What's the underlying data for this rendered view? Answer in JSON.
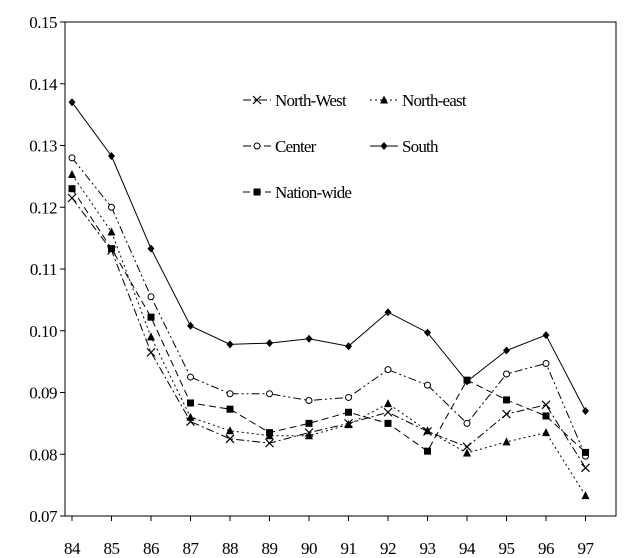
{
  "chart_data": {
    "type": "line",
    "title": "",
    "xlabel": "",
    "ylabel": "",
    "x": [
      "84",
      "85",
      "86",
      "87",
      "88",
      "89",
      "90",
      "91",
      "92",
      "93",
      "94",
      "95",
      "96",
      "97"
    ],
    "ylim": [
      0.07,
      0.15
    ],
    "yticks": [
      "0.07",
      "0.08",
      "0.09",
      "0.10",
      "0.11",
      "0.12",
      "0.13",
      "0.14",
      "0.15"
    ],
    "grid": false,
    "legend_position": "top-center",
    "series": [
      {
        "name": "North-West",
        "marker": "x",
        "dash": "dashdot",
        "values": [
          0.1215,
          0.113,
          0.0965,
          0.0853,
          0.0825,
          0.0818,
          0.0835,
          0.085,
          0.0868,
          0.0837,
          0.0812,
          0.0865,
          0.088,
          0.0778
        ]
      },
      {
        "name": "North-east",
        "marker": "triangle",
        "dash": "dot",
        "values": [
          0.1253,
          0.116,
          0.099,
          0.086,
          0.0838,
          0.083,
          0.083,
          0.0848,
          0.0882,
          0.0838,
          0.0802,
          0.082,
          0.0835,
          0.0733
        ]
      },
      {
        "name": "Center",
        "marker": "circle",
        "dash": "dashdotdot",
        "values": [
          0.128,
          0.12,
          0.1055,
          0.0925,
          0.0898,
          0.0898,
          0.0887,
          0.0892,
          0.0937,
          0.0912,
          0.085,
          0.093,
          0.0947,
          0.0797
        ]
      },
      {
        "name": "South",
        "marker": "diamond",
        "dash": "solid",
        "values": [
          0.137,
          0.1283,
          0.1133,
          0.1008,
          0.0978,
          0.098,
          0.0987,
          0.0975,
          0.103,
          0.0997,
          0.0918,
          0.0968,
          0.0993,
          0.087
        ]
      },
      {
        "name": "Nation-wide",
        "marker": "square",
        "dash": "dash",
        "values": [
          0.123,
          0.1133,
          0.1022,
          0.0883,
          0.0873,
          0.0835,
          0.085,
          0.0868,
          0.085,
          0.0805,
          0.092,
          0.0888,
          0.0862,
          0.0803
        ]
      }
    ]
  }
}
